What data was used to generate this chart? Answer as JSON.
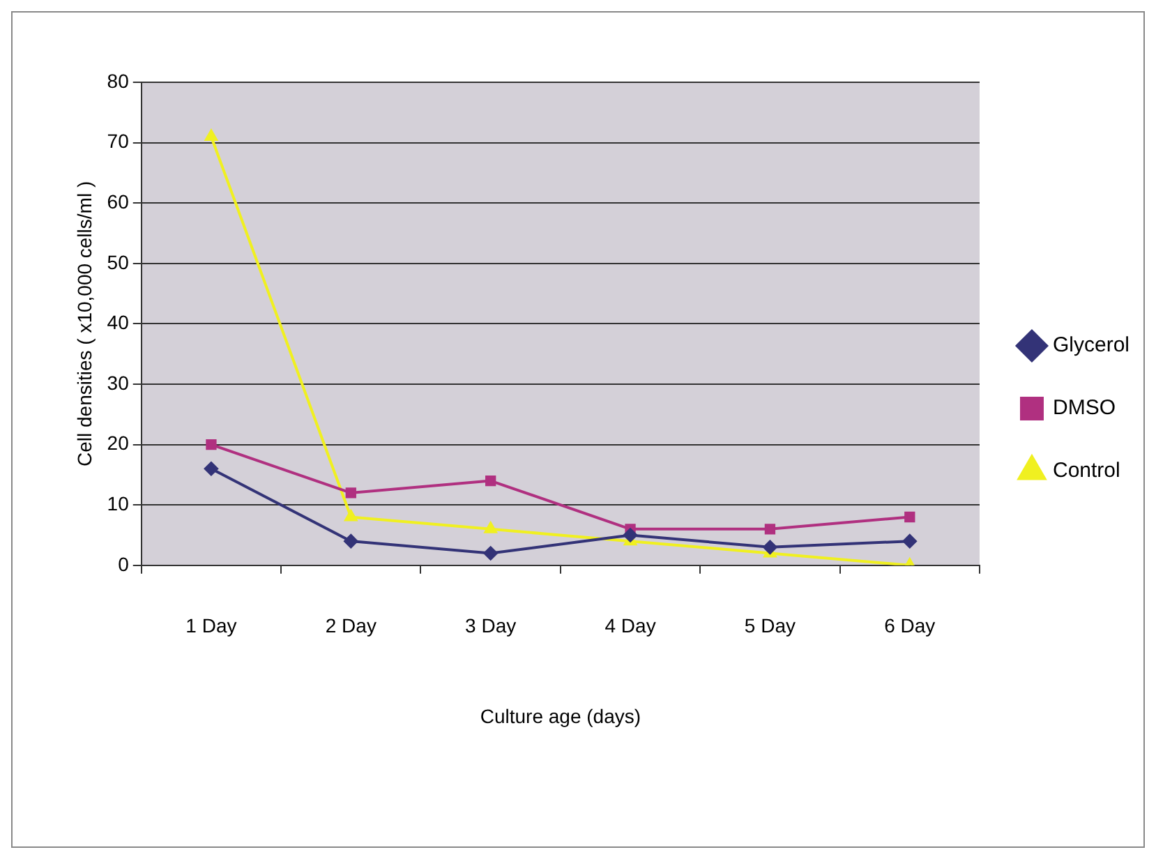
{
  "chart_data": {
    "type": "line",
    "xlabel": "Culture age (days)",
    "ylabel": "Cell densities ( x10,000 cells/ml )",
    "categories": [
      "1 Day",
      "2 Day",
      "3 Day",
      "4 Day",
      "5 Day",
      "6 Day"
    ],
    "series": [
      {
        "name": "Glycerol",
        "color": "#333377",
        "marker": "diamond",
        "values": [
          16,
          4,
          2,
          5,
          3,
          4
        ]
      },
      {
        "name": "DMSO",
        "color": "#b03080",
        "marker": "square",
        "values": [
          20,
          12,
          14,
          6,
          6,
          8
        ]
      },
      {
        "name": "Control",
        "color": "#f0f020",
        "marker": "triangle",
        "values": [
          71,
          8,
          6,
          4,
          2,
          0
        ]
      }
    ],
    "ylim": [
      0,
      80
    ],
    "yticks": [
      0,
      10,
      20,
      30,
      40,
      50,
      60,
      70,
      80
    ],
    "grid": "y",
    "legend": "right",
    "line_style": "solid"
  }
}
